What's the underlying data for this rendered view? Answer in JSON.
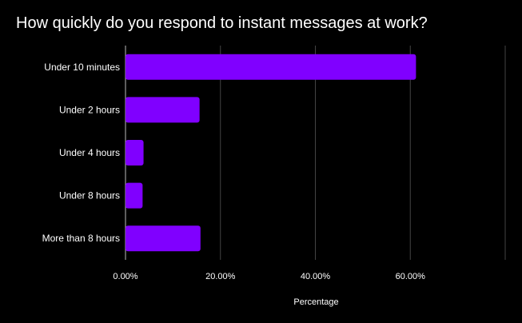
{
  "chart_data": {
    "type": "bar",
    "orientation": "horizontal",
    "title": "How quickly do you respond to instant messages at work?",
    "xlabel": "Percentage",
    "ylabel": "",
    "categories": [
      "Under 10 minutes",
      "Under 2 hours",
      "Under 4 hours",
      "Under 8 hours",
      "More than 8 hours"
    ],
    "values": [
      61.2,
      15.6,
      3.8,
      3.6,
      15.8
    ],
    "xlim": [
      0,
      80
    ],
    "x_ticks": [
      0,
      20,
      40,
      60
    ],
    "x_tick_labels": [
      "0.00%",
      "20.00%",
      "40.00%",
      "60.00%"
    ],
    "grid": true,
    "bar_color": "#8000ff",
    "background": "#000000",
    "gridline_color": "#444444"
  }
}
